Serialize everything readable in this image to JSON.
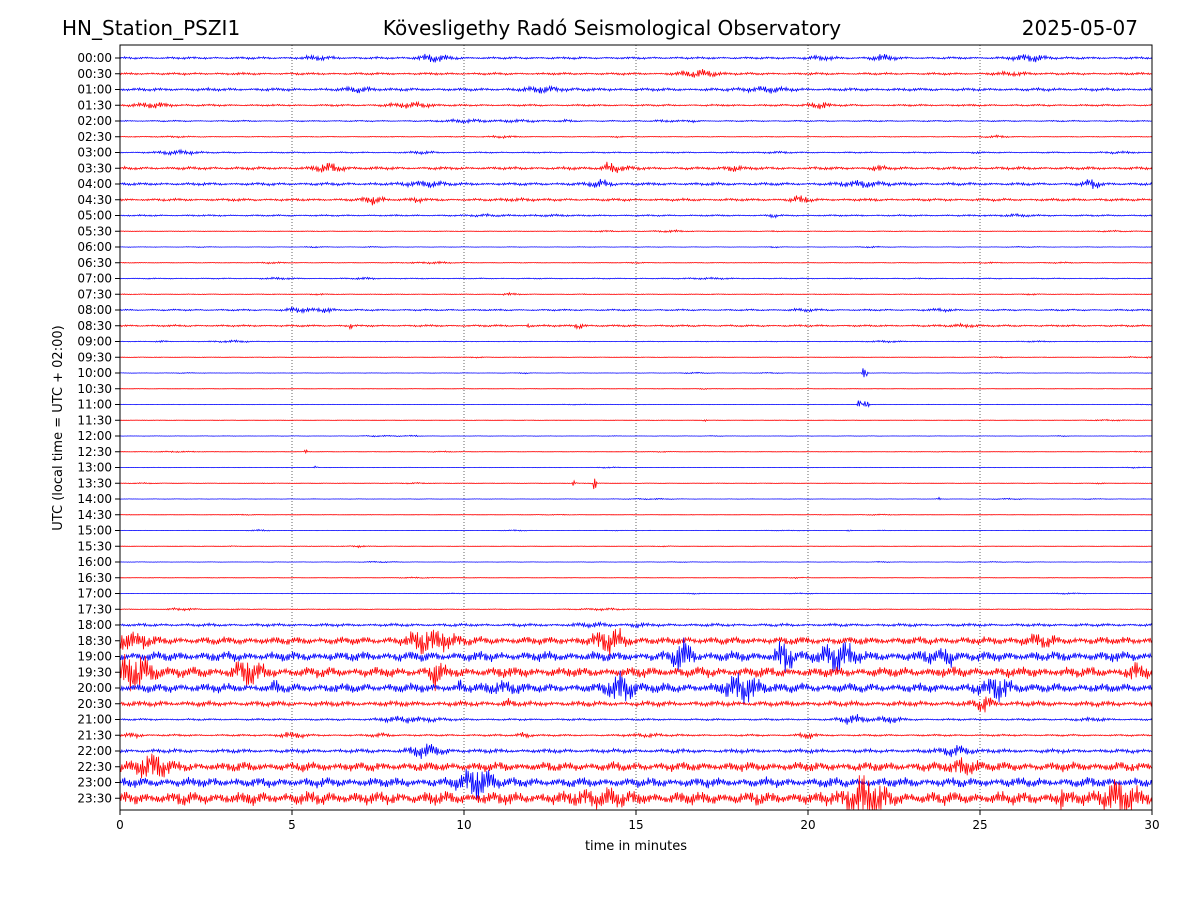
{
  "header": {
    "station": "HN_Station_PSZI1",
    "observatory": "Kövesligethy Radó Seismological Observatory",
    "date": "2025-05-07"
  },
  "chart_data": {
    "type": "line",
    "subtype": "helicorder",
    "xlabel": "time in minutes",
    "ylabel": "UTC (local time = UTC + 02:00)",
    "xlim": [
      0,
      30
    ],
    "x_ticks": [
      "0",
      "5",
      "10",
      "15",
      "20",
      "25",
      "30"
    ],
    "x_tick_values": [
      0,
      5,
      10,
      15,
      20,
      25,
      30
    ],
    "vertical_grid": "dotted",
    "trace_colors": [
      "#0000ff",
      "#ff0000"
    ],
    "rows": [
      {
        "label": "00:00",
        "amplitude": 0.35
      },
      {
        "label": "00:30",
        "amplitude": 0.35
      },
      {
        "label": "01:00",
        "amplitude": 0.45
      },
      {
        "label": "01:30",
        "amplitude": 0.3
      },
      {
        "label": "02:00",
        "amplitude": 0.2
      },
      {
        "label": "02:30",
        "amplitude": 0.12
      },
      {
        "label": "03:00",
        "amplitude": 0.2
      },
      {
        "label": "03:30",
        "amplitude": 0.45
      },
      {
        "label": "04:00",
        "amplitude": 0.45
      },
      {
        "label": "04:30",
        "amplitude": 0.4
      },
      {
        "label": "05:00",
        "amplitude": 0.25
      },
      {
        "label": "05:30",
        "amplitude": 0.1
      },
      {
        "label": "06:00",
        "amplitude": 0.08
      },
      {
        "label": "06:30",
        "amplitude": 0.1
      },
      {
        "label": "07:00",
        "amplitude": 0.15
      },
      {
        "label": "07:30",
        "amplitude": 0.12
      },
      {
        "label": "08:00",
        "amplitude": 0.25
      },
      {
        "label": "08:30",
        "amplitude": 0.3
      },
      {
        "label": "09:00",
        "amplitude": 0.1
      },
      {
        "label": "09:30",
        "amplitude": 0.08
      },
      {
        "label": "10:00",
        "amplitude": 0.06
      },
      {
        "label": "10:30",
        "amplitude": 0.06
      },
      {
        "label": "11:00",
        "amplitude": 0.06
      },
      {
        "label": "11:30",
        "amplitude": 0.06
      },
      {
        "label": "12:00",
        "amplitude": 0.06
      },
      {
        "label": "12:30",
        "amplitude": 0.06
      },
      {
        "label": "13:00",
        "amplitude": 0.06
      },
      {
        "label": "13:30",
        "amplitude": 0.08
      },
      {
        "label": "14:00",
        "amplitude": 0.06
      },
      {
        "label": "14:30",
        "amplitude": 0.05
      },
      {
        "label": "15:00",
        "amplitude": 0.05
      },
      {
        "label": "15:30",
        "amplitude": 0.06
      },
      {
        "label": "16:00",
        "amplitude": 0.06
      },
      {
        "label": "16:30",
        "amplitude": 0.06
      },
      {
        "label": "17:00",
        "amplitude": 0.06
      },
      {
        "label": "17:30",
        "amplitude": 0.12
      },
      {
        "label": "18:00",
        "amplitude": 0.45
      },
      {
        "label": "18:30",
        "amplitude": 1.2
      },
      {
        "label": "19:00",
        "amplitude": 1.5
      },
      {
        "label": "19:30",
        "amplitude": 1.6
      },
      {
        "label": "20:00",
        "amplitude": 1.4
      },
      {
        "label": "20:30",
        "amplitude": 0.8
      },
      {
        "label": "21:00",
        "amplitude": 0.3
      },
      {
        "label": "21:30",
        "amplitude": 0.3
      },
      {
        "label": "22:00",
        "amplitude": 0.6
      },
      {
        "label": "22:30",
        "amplitude": 1.4
      },
      {
        "label": "23:00",
        "amplitude": 1.5
      },
      {
        "label": "23:30",
        "amplitude": 2.0
      }
    ],
    "events": [
      {
        "row": "10:00",
        "minute": 21.65,
        "amplitude": 1.9
      },
      {
        "row": "11:00",
        "minute": 21.5,
        "amplitude": 1.2
      },
      {
        "row": "11:00",
        "minute": 21.7,
        "amplitude": 1.5
      },
      {
        "row": "13:30",
        "minute": 13.8,
        "amplitude": 1.4
      },
      {
        "row": "13:30",
        "minute": 13.2,
        "amplitude": 0.6
      },
      {
        "row": "08:30",
        "minute": 6.7,
        "amplitude": 0.6
      },
      {
        "row": "08:30",
        "minute": 11.9,
        "amplitude": 0.5
      },
      {
        "row": "12:30",
        "minute": 5.4,
        "amplitude": 0.4
      },
      {
        "row": "11:30",
        "minute": 17.0,
        "amplitude": 0.35
      },
      {
        "row": "13:00",
        "minute": 5.7,
        "amplitude": 0.3
      },
      {
        "row": "14:00",
        "minute": 23.8,
        "amplitude": 0.3
      },
      {
        "row": "15:00",
        "minute": 21.2,
        "amplitude": 0.25
      },
      {
        "row": "09:30",
        "minute": 29.9,
        "amplitude": 0.25
      },
      {
        "row": "20:00",
        "minute": 4.5,
        "amplitude": 1.6
      },
      {
        "row": "20:00",
        "minute": 9.9,
        "amplitude": 1.5
      },
      {
        "row": "23:30",
        "minute": 27.4,
        "amplitude": 2.0
      }
    ]
  }
}
